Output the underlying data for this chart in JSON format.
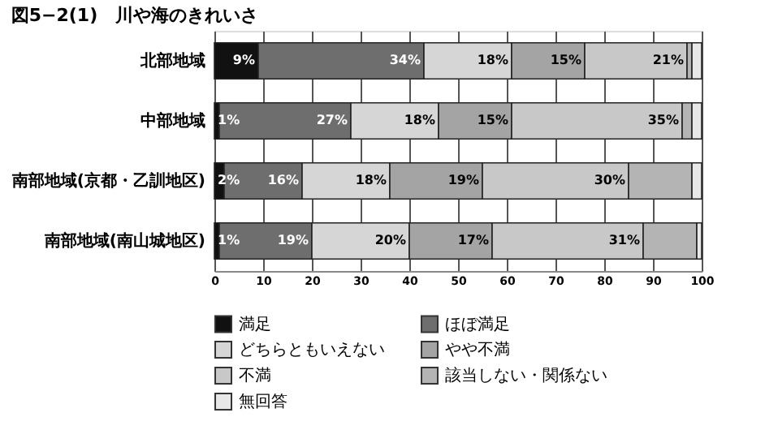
{
  "chart_data": {
    "type": "bar",
    "orientation": "horizontal",
    "stacked": true,
    "title": "図5−2(1)　川や海のきれいさ",
    "categories": [
      "北部地域",
      "中部地域",
      "南部地域(京都・乙訓地区)",
      "南部地域(南山城地区)"
    ],
    "xlim": [
      0,
      100
    ],
    "xticks": [
      0,
      10,
      20,
      30,
      40,
      50,
      60,
      70,
      80,
      90,
      100
    ],
    "grid": "x",
    "legend": "bottom",
    "series": [
      {
        "name": "満足",
        "color": "#111111",
        "values": [
          9,
          1,
          2,
          1
        ],
        "value_labels": [
          "9%",
          "1%",
          "2%",
          "1%"
        ]
      },
      {
        "name": "ほぼ満足",
        "color": "#6e6e6e",
        "values": [
          34,
          27,
          16,
          19
        ],
        "value_labels": [
          "34%",
          "27%",
          "16%",
          "19%"
        ]
      },
      {
        "name": "どちらともいえない",
        "color": "#d6d6d6",
        "values": [
          18,
          18,
          18,
          20
        ],
        "value_labels": [
          "18%",
          "18%",
          "18%",
          "20%"
        ]
      },
      {
        "name": "やや不満",
        "color": "#a4a4a4",
        "values": [
          15,
          15,
          19,
          17
        ],
        "value_labels": [
          "15%",
          "15%",
          "19%",
          "17%"
        ]
      },
      {
        "name": "不満",
        "color": "#c8c8c8",
        "values": [
          21,
          35,
          30,
          31
        ],
        "value_labels": [
          "21%",
          "35%",
          "30%",
          "31%"
        ]
      },
      {
        "name": "該当しない・関係ない",
        "color": "#b4b4b4",
        "values": [
          1,
          2,
          13,
          11
        ],
        "value_labels": [
          null,
          null,
          null,
          null
        ]
      },
      {
        "name": "無回答",
        "color": "#e8e8e8",
        "values": [
          2,
          2,
          2,
          1
        ],
        "value_labels": [
          null,
          null,
          null,
          null
        ]
      }
    ]
  }
}
